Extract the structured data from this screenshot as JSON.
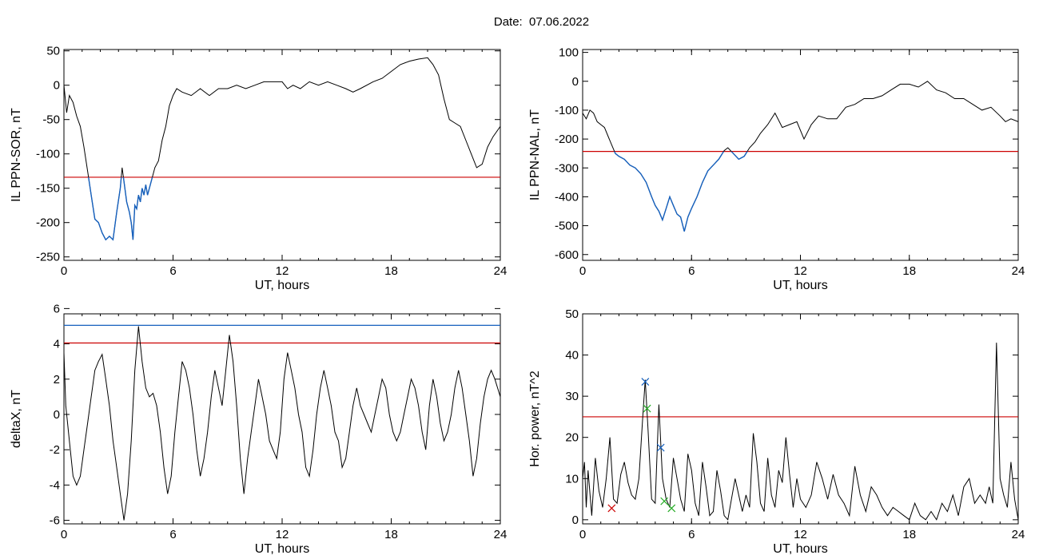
{
  "page_title": "Date:  07.06.2022",
  "colors": {
    "trace": "#000000",
    "threshold": "#cc0000",
    "highlight": "#1560bd",
    "marker_green": "#22aa22",
    "marker_red": "#cc0000"
  },
  "chart_data": [
    {
      "type": "line",
      "ylabel": "IL PPN-SOR, nT",
      "xlabel": "UT, hours",
      "xlim": [
        0,
        24
      ],
      "ylim": [
        -255,
        52
      ],
      "xticks": [
        0,
        6,
        12,
        18,
        24
      ],
      "yticks": [
        50,
        0,
        -50,
        -100,
        -150,
        -200,
        -250
      ],
      "thresholds": [
        {
          "value": -134,
          "color": "#cc0000"
        }
      ],
      "highlight_below": -134,
      "series": [
        {
          "x": [
            0,
            0.15,
            0.3,
            0.5,
            0.7,
            0.9,
            1.1,
            1.3,
            1.5,
            1.7,
            1.9,
            2.1,
            2.3,
            2.5,
            2.7,
            2.9,
            3.1,
            3.2,
            3.3,
            3.45,
            3.6,
            3.7,
            3.8,
            3.9,
            4.0,
            4.1,
            4.2,
            4.3,
            4.4,
            4.5,
            4.6,
            4.8,
            5.0,
            5.2,
            5.4,
            5.6,
            5.8,
            6.0,
            6.2,
            6.5,
            7.0,
            7.5,
            8.0,
            8.5,
            9.0,
            9.5,
            10.0,
            10.5,
            11.0,
            11.5,
            12.0,
            12.3,
            12.6,
            13.0,
            13.5,
            14.0,
            14.5,
            15.0,
            15.5,
            15.9,
            16.3,
            17.0,
            17.5,
            18.0,
            18.5,
            19.0,
            19.5,
            20.0,
            20.3,
            20.6,
            20.9,
            21.2,
            21.5,
            21.8,
            22.1,
            22.4,
            22.7,
            23.0,
            23.3,
            23.6,
            24.0
          ],
          "y": [
            0,
            -40,
            -15,
            -25,
            -45,
            -60,
            -90,
            -125,
            -160,
            -195,
            -200,
            -215,
            -225,
            -220,
            -225,
            -185,
            -150,
            -120,
            -140,
            -170,
            -185,
            -200,
            -225,
            -175,
            -180,
            -160,
            -170,
            -150,
            -160,
            -145,
            -160,
            -140,
            -120,
            -110,
            -80,
            -60,
            -30,
            -15,
            -5,
            -10,
            -15,
            -5,
            -15,
            -5,
            -5,
            0,
            -5,
            0,
            5,
            5,
            5,
            -5,
            0,
            -5,
            5,
            0,
            5,
            0,
            -5,
            -10,
            -5,
            5,
            10,
            20,
            30,
            35,
            38,
            40,
            30,
            15,
            -20,
            -50,
            -55,
            -60,
            -80,
            -100,
            -120,
            -115,
            -90,
            -75,
            -60
          ]
        }
      ]
    },
    {
      "type": "line",
      "ylabel": "IL PPN-NAL, nT",
      "xlabel": "UT, hours",
      "xlim": [
        0,
        24
      ],
      "ylim": [
        -620,
        110
      ],
      "xticks": [
        0,
        6,
        12,
        18,
        24
      ],
      "yticks": [
        100,
        0,
        -100,
        -200,
        -300,
        -400,
        -500,
        -600
      ],
      "thresholds": [
        {
          "value": -243,
          "color": "#cc0000"
        }
      ],
      "highlight_below": -243,
      "series": [
        {
          "x": [
            0,
            0.2,
            0.4,
            0.6,
            0.8,
            1.0,
            1.2,
            1.4,
            1.6,
            1.8,
            2.0,
            2.3,
            2.6,
            2.9,
            3.2,
            3.5,
            3.8,
            4.0,
            4.2,
            4.4,
            4.6,
            4.8,
            5.0,
            5.2,
            5.4,
            5.6,
            5.8,
            6.0,
            6.3,
            6.6,
            6.9,
            7.2,
            7.5,
            7.8,
            8.0,
            8.3,
            8.6,
            8.9,
            9.2,
            9.5,
            9.8,
            10.2,
            10.6,
            11.0,
            11.4,
            11.8,
            12.2,
            12.6,
            13.0,
            13.5,
            14.0,
            14.5,
            15.0,
            15.5,
            16.0,
            16.5,
            17.0,
            17.5,
            18.0,
            18.5,
            19.0,
            19.5,
            20.0,
            20.5,
            21.0,
            21.5,
            22.0,
            22.5,
            23.0,
            23.3,
            23.6,
            24.0
          ],
          "y": [
            -110,
            -130,
            -100,
            -110,
            -140,
            -150,
            -160,
            -190,
            -220,
            -250,
            -260,
            -270,
            -290,
            -300,
            -320,
            -350,
            -400,
            -430,
            -450,
            -480,
            -440,
            -400,
            -430,
            -460,
            -470,
            -520,
            -470,
            -440,
            -400,
            -350,
            -310,
            -290,
            -270,
            -240,
            -230,
            -250,
            -270,
            -260,
            -230,
            -210,
            -180,
            -150,
            -110,
            -160,
            -150,
            -140,
            -200,
            -150,
            -120,
            -130,
            -130,
            -90,
            -80,
            -60,
            -60,
            -50,
            -30,
            -10,
            -10,
            -20,
            0,
            -30,
            -40,
            -60,
            -60,
            -80,
            -100,
            -90,
            -120,
            -140,
            -130,
            -140
          ]
        }
      ]
    },
    {
      "type": "line",
      "ylabel": "deltaX, nT",
      "xlabel": "UT, hours",
      "xlim": [
        0,
        24
      ],
      "ylim": [
        -6.2,
        5.7
      ],
      "xticks": [
        0,
        6,
        12,
        18,
        24
      ],
      "yticks": [
        6,
        4,
        2,
        0,
        -2,
        -4,
        -6
      ],
      "thresholds": [
        {
          "value": 5.05,
          "color": "#1560bd"
        },
        {
          "value": 4.05,
          "color": "#cc0000"
        }
      ],
      "series": [
        {
          "x": [
            0,
            0.1,
            0.3,
            0.5,
            0.7,
            0.9,
            1.1,
            1.3,
            1.5,
            1.7,
            1.9,
            2.1,
            2.3,
            2.5,
            2.7,
            2.9,
            3.1,
            3.3,
            3.5,
            3.7,
            3.9,
            4.1,
            4.3,
            4.5,
            4.7,
            4.9,
            5.1,
            5.3,
            5.5,
            5.7,
            5.9,
            6.1,
            6.3,
            6.5,
            6.7,
            6.9,
            7.1,
            7.3,
            7.5,
            7.7,
            7.9,
            8.1,
            8.3,
            8.5,
            8.7,
            8.9,
            9.1,
            9.3,
            9.5,
            9.7,
            9.9,
            10.1,
            10.3,
            10.5,
            10.7,
            10.9,
            11.1,
            11.3,
            11.5,
            11.7,
            11.9,
            12.1,
            12.3,
            12.5,
            12.7,
            12.9,
            13.1,
            13.3,
            13.5,
            13.7,
            13.9,
            14.1,
            14.3,
            14.5,
            14.7,
            14.9,
            15.1,
            15.3,
            15.5,
            15.7,
            15.9,
            16.1,
            16.3,
            16.5,
            16.7,
            16.9,
            17.1,
            17.3,
            17.5,
            17.7,
            17.9,
            18.1,
            18.3,
            18.5,
            18.7,
            18.9,
            19.1,
            19.3,
            19.5,
            19.7,
            19.9,
            20.1,
            20.3,
            20.5,
            20.7,
            20.9,
            21.1,
            21.3,
            21.5,
            21.7,
            21.9,
            22.1,
            22.3,
            22.5,
            22.7,
            22.9,
            23.1,
            23.3,
            23.5,
            23.7,
            24.0
          ],
          "y": [
            3.5,
            0.5,
            -1.5,
            -3.5,
            -4.0,
            -3.5,
            -2.0,
            -0.5,
            1.0,
            2.5,
            3.0,
            3.4,
            2.0,
            0.5,
            -1.5,
            -3.0,
            -4.5,
            -6.0,
            -4.5,
            -1.5,
            2.5,
            5.0,
            3.0,
            1.5,
            1.0,
            1.2,
            0.5,
            -1.0,
            -3.0,
            -4.5,
            -3.5,
            -1.0,
            1.0,
            3.0,
            2.5,
            1.5,
            0.0,
            -2.0,
            -3.5,
            -2.5,
            -1.0,
            1.0,
            2.5,
            1.5,
            0.5,
            2.5,
            4.5,
            3.0,
            0.5,
            -2.5,
            -4.5,
            -2.5,
            -1.0,
            0.5,
            2.0,
            1.0,
            0.0,
            -1.5,
            -2.0,
            -2.5,
            -1.0,
            2.0,
            3.5,
            2.5,
            1.5,
            0.0,
            -1.0,
            -3.0,
            -3.5,
            -2.0,
            0.0,
            1.5,
            2.5,
            1.5,
            0.5,
            -1.0,
            -1.5,
            -3.0,
            -2.5,
            -1.0,
            0.5,
            1.5,
            0.5,
            0.0,
            -0.5,
            -1.0,
            0.0,
            1.0,
            2.0,
            1.5,
            0.0,
            -1.0,
            -1.5,
            -1.0,
            0.0,
            1.0,
            2.0,
            1.5,
            0.5,
            -1.0,
            -2.0,
            0.5,
            2.0,
            1.0,
            -0.5,
            -1.5,
            -1.0,
            0.0,
            1.5,
            2.5,
            1.5,
            0.0,
            -1.5,
            -3.5,
            -2.5,
            -0.5,
            1.0,
            2.0,
            2.5,
            2.0,
            1.0
          ]
        }
      ]
    },
    {
      "type": "line",
      "ylabel": "Hor. power, nT^2",
      "xlabel": "UT, hours",
      "xlim": [
        0,
        24
      ],
      "ylim": [
        -1,
        50
      ],
      "xticks": [
        0,
        6,
        12,
        18,
        24
      ],
      "yticks": [
        50,
        40,
        30,
        20,
        10,
        0
      ],
      "thresholds": [
        {
          "value": 25,
          "color": "#cc0000"
        }
      ],
      "series": [
        {
          "x": [
            0,
            0.1,
            0.2,
            0.3,
            0.5,
            0.7,
            0.9,
            1.1,
            1.3,
            1.5,
            1.7,
            1.9,
            2.1,
            2.3,
            2.5,
            2.7,
            2.9,
            3.1,
            3.3,
            3.45,
            3.6,
            3.8,
            4.0,
            4.2,
            4.4,
            4.6,
            4.8,
            5.0,
            5.2,
            5.4,
            5.6,
            5.8,
            6.0,
            6.2,
            6.4,
            6.6,
            6.8,
            7.0,
            7.2,
            7.4,
            7.6,
            7.8,
            8.0,
            8.2,
            8.4,
            8.6,
            8.8,
            9.0,
            9.2,
            9.4,
            9.6,
            9.8,
            10.0,
            10.2,
            10.4,
            10.6,
            10.8,
            11.0,
            11.2,
            11.4,
            11.6,
            11.8,
            12.0,
            12.3,
            12.6,
            12.9,
            13.2,
            13.5,
            13.8,
            14.1,
            14.4,
            14.7,
            15.0,
            15.3,
            15.6,
            15.9,
            16.2,
            16.5,
            16.8,
            17.1,
            17.4,
            17.7,
            18.0,
            18.3,
            18.6,
            18.9,
            19.2,
            19.5,
            19.8,
            20.1,
            20.4,
            20.7,
            21.0,
            21.3,
            21.6,
            21.9,
            22.2,
            22.4,
            22.6,
            22.8,
            23.0,
            23.2,
            23.4,
            23.6,
            23.8,
            24.0
          ],
          "y": [
            10,
            14,
            3,
            12,
            1,
            15,
            7,
            3,
            10,
            20,
            5,
            4,
            11,
            14,
            9,
            6,
            5,
            10,
            24,
            34,
            22,
            5,
            4,
            28,
            10,
            5,
            3,
            15,
            10,
            5,
            2,
            16,
            12,
            4,
            1,
            14,
            8,
            1,
            2,
            12,
            7,
            1,
            0,
            5,
            10,
            6,
            2,
            6,
            3,
            21,
            14,
            4,
            2,
            15,
            6,
            3,
            12,
            9,
            20,
            11,
            3,
            10,
            5,
            3,
            6,
            14,
            10,
            5,
            11,
            6,
            4,
            1,
            13,
            6,
            2,
            8,
            6,
            3,
            1,
            3,
            2,
            1,
            0,
            4,
            1,
            0,
            2,
            0,
            4,
            2,
            6,
            1,
            8,
            10,
            4,
            6,
            4,
            8,
            4,
            43,
            10,
            6,
            3,
            14,
            5,
            0
          ]
        }
      ],
      "markers": [
        {
          "x": 3.45,
          "y": 33.5,
          "color": "#1560bd"
        },
        {
          "x": 3.55,
          "y": 27,
          "color": "#22aa22"
        },
        {
          "x": 4.3,
          "y": 17.5,
          "color": "#1560bd"
        },
        {
          "x": 4.5,
          "y": 4.5,
          "color": "#22aa22"
        },
        {
          "x": 4.9,
          "y": 2.8,
          "color": "#22aa22"
        },
        {
          "x": 1.6,
          "y": 2.8,
          "color": "#cc0000"
        }
      ]
    }
  ]
}
